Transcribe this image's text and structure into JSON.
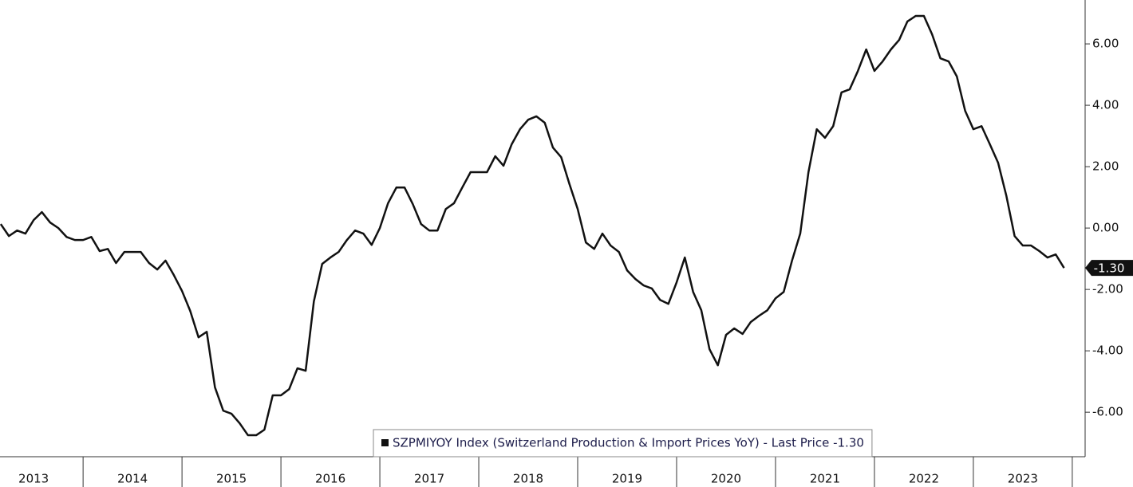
{
  "chart_data": {
    "type": "line",
    "xlim": [
      2013.16,
      2024.13
    ],
    "xticks": [
      2013,
      2014,
      2015,
      2016,
      2017,
      2018,
      2019,
      2020,
      2021,
      2022,
      2023
    ],
    "ylim": [
      -7.45,
      7.43
    ],
    "yticks": [
      {
        "value": -6,
        "label": "-6.00"
      },
      {
        "value": -4,
        "label": "-4.00"
      },
      {
        "value": -2,
        "label": "-2.00"
      },
      {
        "value": 0,
        "label": "0.00"
      },
      {
        "value": 2,
        "label": "2.00"
      },
      {
        "value": 4,
        "label": "4.00"
      },
      {
        "value": 6,
        "label": "6.00"
      }
    ],
    "x": [
      2013.167,
      2013.25,
      2013.333,
      2013.417,
      2013.5,
      2013.583,
      2013.667,
      2013.75,
      2013.833,
      2013.917,
      2014,
      2014.083,
      2014.167,
      2014.25,
      2014.333,
      2014.417,
      2014.5,
      2014.583,
      2014.667,
      2014.75,
      2014.833,
      2014.917,
      2015,
      2015.083,
      2015.167,
      2015.25,
      2015.333,
      2015.417,
      2015.5,
      2015.583,
      2015.667,
      2015.75,
      2015.833,
      2015.917,
      2016,
      2016.083,
      2016.167,
      2016.25,
      2016.333,
      2016.417,
      2016.5,
      2016.583,
      2016.667,
      2016.75,
      2016.833,
      2016.917,
      2017,
      2017.083,
      2017.167,
      2017.25,
      2017.333,
      2017.417,
      2017.5,
      2017.583,
      2017.667,
      2017.75,
      2017.833,
      2017.917,
      2018,
      2018.083,
      2018.167,
      2018.25,
      2018.333,
      2018.417,
      2018.5,
      2018.583,
      2018.667,
      2018.75,
      2018.833,
      2018.917,
      2019,
      2019.083,
      2019.167,
      2019.25,
      2019.333,
      2019.417,
      2019.5,
      2019.583,
      2019.667,
      2019.75,
      2019.833,
      2019.917,
      2020,
      2020.083,
      2020.167,
      2020.25,
      2020.333,
      2020.417,
      2020.5,
      2020.583,
      2020.667,
      2020.75,
      2020.833,
      2020.917,
      2021,
      2021.083,
      2021.167,
      2021.25,
      2021.333,
      2021.417,
      2021.5,
      2021.583,
      2021.667,
      2021.75,
      2021.833,
      2021.917,
      2022,
      2022.083,
      2022.167,
      2022.25,
      2022.333,
      2022.417,
      2022.5,
      2022.583,
      2022.667,
      2022.75,
      2022.833,
      2022.917,
      2023,
      2023.083,
      2023.167,
      2023.25,
      2023.333,
      2023.417,
      2023.5,
      2023.583,
      2023.667,
      2023.75,
      2023.833,
      2023.917
    ],
    "series": [
      {
        "name": "SZPMIYOY Index (Switzerland Production & Import Prices YoY) - Last Price -1.30",
        "color": "#111111",
        "values": [
          0.13,
          -0.26,
          -0.08,
          -0.18,
          0.26,
          0.52,
          0.18,
          0,
          -0.29,
          -0.39,
          -0.39,
          -0.29,
          -0.75,
          -0.68,
          -1.14,
          -0.78,
          -0.78,
          -0.78,
          -1.14,
          -1.35,
          -1.06,
          -1.53,
          -2.05,
          -2.7,
          -3.56,
          -3.38,
          -5.19,
          -5.95,
          -6.05,
          -6.36,
          -6.75,
          -6.75,
          -6.57,
          -5.45,
          -5.45,
          -5.25,
          -4.57,
          -4.65,
          -2.39,
          -1.17,
          -0.96,
          -0.78,
          -0.39,
          -0.08,
          -0.18,
          -0.55,
          0,
          0.81,
          1.32,
          1.32,
          0.78,
          0.13,
          -0.08,
          -0.08,
          0.62,
          0.81,
          1.32,
          1.82,
          1.82,
          1.82,
          2.34,
          2.03,
          2.73,
          3.22,
          3.53,
          3.64,
          3.43,
          2.62,
          2.31,
          1.43,
          0.62,
          -0.47,
          -0.68,
          -0.18,
          -0.57,
          -0.78,
          -1.38,
          -1.66,
          -1.87,
          -1.97,
          -2.34,
          -2.47,
          -1.77,
          -0.96,
          -2.08,
          -2.68,
          -3.95,
          -4.47,
          -3.48,
          -3.27,
          -3.45,
          -3.06,
          -2.86,
          -2.68,
          -2.29,
          -2.08,
          -1.06,
          -0.18,
          1.82,
          3.22,
          2.94,
          3.32,
          4.42,
          4.52,
          5.12,
          5.82,
          5.12,
          5.43,
          5.82,
          6.13,
          6.73,
          6.91,
          6.91,
          6.31,
          5.53,
          5.43,
          4.94,
          3.82,
          3.22,
          3.32,
          2.73,
          2.13,
          1.06,
          -0.26,
          -0.57,
          -0.57,
          -0.75,
          -0.96,
          -0.86,
          -1.3
        ],
        "value_labels": [
          null,
          null,
          null,
          null,
          null,
          null,
          null,
          null,
          null,
          null,
          null,
          null,
          null,
          null,
          null,
          null,
          null,
          null,
          null,
          null,
          null,
          null,
          null,
          null,
          null,
          null,
          null,
          null,
          null,
          null,
          null,
          null,
          null,
          null,
          null,
          null,
          null,
          null,
          null,
          null,
          null,
          null,
          null,
          null,
          null,
          null,
          null,
          null,
          null,
          null,
          null,
          null,
          null,
          null,
          null,
          null,
          null,
          null,
          null,
          null,
          null,
          null,
          null,
          null,
          null,
          null,
          null,
          null,
          null,
          null,
          null,
          null,
          null,
          null,
          null,
          null,
          null,
          null,
          null,
          null,
          null,
          null,
          null,
          null,
          null,
          null,
          null,
          null,
          null,
          null,
          null,
          null,
          null,
          null,
          null,
          null,
          null,
          null,
          null,
          null,
          null,
          null,
          null,
          null,
          null,
          null,
          null,
          null,
          null,
          null,
          null,
          null,
          null,
          null,
          null,
          null,
          null,
          null,
          null,
          null,
          null,
          null,
          null,
          null,
          null,
          null,
          null,
          null,
          null,
          "-1.30"
        ]
      }
    ]
  }
}
